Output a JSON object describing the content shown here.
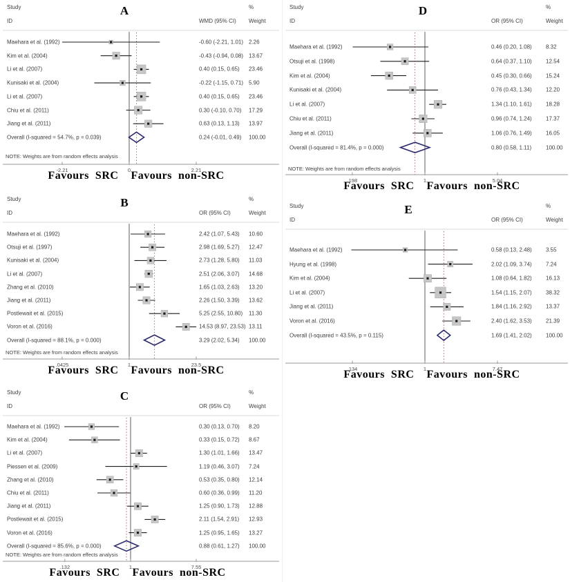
{
  "labels": {
    "study": "Study",
    "id": "ID",
    "percent": "%",
    "weight": "Weight",
    "favours": "Favours  SRC    Favours  non-SRC"
  },
  "colors": {
    "ci_line": "#1a1a1a",
    "marker": "#1a1a1a",
    "weight_box": "#c6c6c6",
    "weight_box_border": "#a8a8a8",
    "diamond": "#28286e",
    "null_line": "#6b6b6b",
    "overall_dashed_line": "#b06c6c",
    "axis_line": "#9a9a9a",
    "divider_line": "#d9d9d9"
  },
  "chart_data": [
    {
      "type": "forest",
      "panel": "A",
      "effect_header": "WMD (95% CI)",
      "scale": "linear",
      "axis_tick_labels": [
        "-2.21",
        "0",
        "2.21"
      ],
      "axis_tick_values": [
        -2.21,
        0,
        2.21
      ],
      "null_value": 0,
      "note": "NOTE: Weights are from random effects analysis",
      "favours": "Favours  SRC    Favours  non-SRC",
      "studies": [
        {
          "id": "Maehara et al. (1992)",
          "est": -0.6,
          "lo": -2.21,
          "hi": 1.01,
          "ci_text": "-0.60 (-2.21, 1.01)",
          "weight": "2.26"
        },
        {
          "id": "Kim et al. (2004)",
          "est": -0.43,
          "lo": -0.94,
          "hi": 0.08,
          "ci_text": "-0.43 (-0.94, 0.08)",
          "weight": "13.67"
        },
        {
          "id": "Li et al. (2007)",
          "est": 0.4,
          "lo": 0.15,
          "hi": 0.65,
          "ci_text": "0.40 (0.15, 0.65)",
          "weight": "23.46"
        },
        {
          "id": "Kunisaki et al. (2004)",
          "est": -0.22,
          "lo": -1.15,
          "hi": 0.71,
          "ci_text": "-0.22 (-1.15, 0.71)",
          "weight": "5.90"
        },
        {
          "id": "Li et al. (2007)",
          "est": 0.4,
          "lo": 0.15,
          "hi": 0.65,
          "ci_text": "0.40 (0.15, 0.65)",
          "weight": "23.46"
        },
        {
          "id": "Chiu et al. (2011)",
          "est": 0.3,
          "lo": -0.1,
          "hi": 0.7,
          "ci_text": "0.30 (-0.10, 0.70)",
          "weight": "17.29"
        },
        {
          "id": "Jiang et al. (2011)",
          "est": 0.63,
          "lo": 0.13,
          "hi": 1.13,
          "ci_text": "0.63 (0.13, 1.13)",
          "weight": "13.97"
        }
      ],
      "overall": {
        "id": "Overall  (I-squared = 54.7%, p = 0.039)",
        "est": 0.24,
        "lo": -0.01,
        "hi": 0.49,
        "ci_text": "0.24 (-0.01, 0.49)",
        "weight": "100.00"
      }
    },
    {
      "type": "forest",
      "panel": "B",
      "effect_header": "OR (95% CI)",
      "scale": "log",
      "axis_tick_labels": [
        ".0425",
        "1",
        "23.5"
      ],
      "axis_tick_values": [
        0.0425,
        1,
        23.5
      ],
      "null_value": 1,
      "note": "NOTE: Weights are from random effects analysis",
      "favours": "Favours  SRC    Favours  non-SRC",
      "studies": [
        {
          "id": "Maehara et al. (1992)",
          "est": 2.42,
          "lo": 1.07,
          "hi": 5.43,
          "ci_text": "2.42 (1.07, 5.43)",
          "weight": "10.60"
        },
        {
          "id": "Otsuji et al. (1997)",
          "est": 2.98,
          "lo": 1.69,
          "hi": 5.27,
          "ci_text": "2.98 (1.69, 5.27)",
          "weight": "12.47"
        },
        {
          "id": "Kunisaki et al. (2004)",
          "est": 2.73,
          "lo": 1.28,
          "hi": 5.8,
          "ci_text": "2.73 (1.28, 5.80)",
          "weight": "11.03"
        },
        {
          "id": "Li et al. (2007)",
          "est": 2.51,
          "lo": 2.06,
          "hi": 3.07,
          "ci_text": "2.51 (2.06, 3.07)",
          "weight": "14.68"
        },
        {
          "id": "Zhang et al. (2010)",
          "est": 1.65,
          "lo": 1.03,
          "hi": 2.63,
          "ci_text": "1.65 (1.03, 2.63)",
          "weight": "13.20"
        },
        {
          "id": "Jiang et al. (2011)",
          "est": 2.26,
          "lo": 1.5,
          "hi": 3.39,
          "ci_text": "2.26 (1.50, 3.39)",
          "weight": "13.62"
        },
        {
          "id": "Postlewait et al. (2015)",
          "est": 5.25,
          "lo": 2.55,
          "hi": 10.8,
          "ci_text": "5.25 (2.55, 10.80)",
          "weight": "11.30"
        },
        {
          "id": "Voron et al. (2016)",
          "est": 14.53,
          "lo": 8.97,
          "hi": 23.53,
          "ci_text": "14.53 (8.97, 23.53)",
          "weight": "13.11"
        }
      ],
      "overall": {
        "id": "Overall  (I-squared = 88.1%, p = 0.000)",
        "est": 3.29,
        "lo": 2.02,
        "hi": 5.34,
        "ci_text": "3.29 (2.02, 5.34)",
        "weight": "100.00"
      }
    },
    {
      "type": "forest",
      "panel": "C",
      "effect_header": "OR (95% CI)",
      "scale": "log",
      "axis_tick_labels": [
        ".132",
        "1",
        "7.55"
      ],
      "axis_tick_values": [
        0.132,
        1,
        7.55
      ],
      "null_value": 1,
      "note": "NOTE: Weights are from random effects analysis",
      "favours": "Favours  SRC    Favours  non-SRC",
      "studies": [
        {
          "id": "Maehara et al. (1992)",
          "est": 0.3,
          "lo": 0.13,
          "hi": 0.7,
          "ci_text": "0.30 (0.13, 0.70)",
          "weight": "8.20"
        },
        {
          "id": "Kim et al. (2004)",
          "est": 0.33,
          "lo": 0.15,
          "hi": 0.72,
          "ci_text": "0.33 (0.15, 0.72)",
          "weight": "8.67"
        },
        {
          "id": "Li et al. (2007)",
          "est": 1.3,
          "lo": 1.01,
          "hi": 1.66,
          "ci_text": "1.30 (1.01, 1.66)",
          "weight": "13.47"
        },
        {
          "id": "Piessen et al. (2009)",
          "est": 1.19,
          "lo": 0.46,
          "hi": 3.07,
          "ci_text": "1.19 (0.46, 3.07)",
          "weight": "7.24"
        },
        {
          "id": "Zhang et al. (2010)",
          "est": 0.53,
          "lo": 0.35,
          "hi": 0.8,
          "ci_text": "0.53 (0.35, 0.80)",
          "weight": "12.14"
        },
        {
          "id": "Chiu et al. (2011)",
          "est": 0.6,
          "lo": 0.36,
          "hi": 0.99,
          "ci_text": "0.60 (0.36, 0.99)",
          "weight": "11.20"
        },
        {
          "id": "Jiang et al. (2011)",
          "est": 1.25,
          "lo": 0.9,
          "hi": 1.73,
          "ci_text": "1.25 (0.90, 1.73)",
          "weight": "12.88"
        },
        {
          "id": "Postlewait et al. (2015)",
          "est": 2.11,
          "lo": 1.54,
          "hi": 2.91,
          "ci_text": "2.11 (1.54, 2.91)",
          "weight": "12.93"
        },
        {
          "id": "Voron et al. (2016)",
          "est": 1.25,
          "lo": 0.95,
          "hi": 1.65,
          "ci_text": "1.25 (0.95, 1.65)",
          "weight": "13.27"
        }
      ],
      "overall": {
        "id": "Overall  (I-squared = 85.6%, p = 0.000)",
        "est": 0.88,
        "lo": 0.61,
        "hi": 1.27,
        "ci_text": "0.88 (0.61, 1.27)",
        "weight": "100.00"
      }
    },
    {
      "type": "forest",
      "panel": "D",
      "effect_header": "OR (95% CI)",
      "scale": "log",
      "axis_tick_labels": [
        ".198",
        "1",
        "5.04"
      ],
      "axis_tick_values": [
        0.198,
        1,
        5.04
      ],
      "null_value": 1,
      "note": "NOTE: Weights are from random effects analysis",
      "favours": "Favours  SRC    Favours  non-SRC",
      "studies": [
        {
          "id": "Maehara et al. (1992)",
          "est": 0.46,
          "lo": 0.2,
          "hi": 1.08,
          "ci_text": "0.46 (0.20, 1.08)",
          "weight": "8.32"
        },
        {
          "id": "Otsuji et al. (1998)",
          "est": 0.64,
          "lo": 0.37,
          "hi": 1.1,
          "ci_text": "0.64 (0.37, 1.10)",
          "weight": "12.54"
        },
        {
          "id": "Kim et al. (2004)",
          "est": 0.45,
          "lo": 0.3,
          "hi": 0.66,
          "ci_text": "0.45 (0.30, 0.66)",
          "weight": "15.24"
        },
        {
          "id": "Kunisaki et al. (2004)",
          "est": 0.76,
          "lo": 0.43,
          "hi": 1.34,
          "ci_text": "0.76 (0.43, 1.34)",
          "weight": "12.20"
        },
        {
          "id": "Li et al. (2007)",
          "est": 1.34,
          "lo": 1.1,
          "hi": 1.61,
          "ci_text": "1.34 (1.10, 1.61)",
          "weight": "18.28"
        },
        {
          "id": "Chiu et al. (2011)",
          "est": 0.96,
          "lo": 0.74,
          "hi": 1.24,
          "ci_text": "0.96 (0.74, 1.24)",
          "weight": "17.37"
        },
        {
          "id": "Jiang et al. (2011)",
          "est": 1.06,
          "lo": 0.76,
          "hi": 1.49,
          "ci_text": "1.06 (0.76, 1.49)",
          "weight": "16.05"
        }
      ],
      "overall": {
        "id": "Overall  (I-squared = 81.4%, p = 0.000)",
        "est": 0.8,
        "lo": 0.58,
        "hi": 1.11,
        "ci_text": "0.80 (0.58, 1.11)",
        "weight": "100.00"
      }
    },
    {
      "type": "forest",
      "panel": "E",
      "effect_header": "OR (95% CI)",
      "scale": "log",
      "axis_tick_labels": [
        ".134",
        "1",
        "7.47"
      ],
      "axis_tick_values": [
        0.134,
        1,
        7.47
      ],
      "null_value": 1,
      "note": null,
      "favours": "Favours  SRC    Favours  non-SRC",
      "studies": [
        {
          "id": "Maehara et al. (1992)",
          "est": 0.58,
          "lo": 0.13,
          "hi": 2.48,
          "ci_text": "0.58 (0.13, 2.48)",
          "weight": "3.55"
        },
        {
          "id": "Hyung et al. (1998)",
          "est": 2.02,
          "lo": 1.09,
          "hi": 3.74,
          "ci_text": "2.02 (1.09, 3.74)",
          "weight": "7.24"
        },
        {
          "id": "Kim et al. (2004)",
          "est": 1.08,
          "lo": 0.64,
          "hi": 1.82,
          "ci_text": "1.08 (0.64, 1.82)",
          "weight": "16.13"
        },
        {
          "id": "Li et al. (2007)",
          "est": 1.54,
          "lo": 1.15,
          "hi": 2.07,
          "ci_text": "1.54 (1.15, 2.07)",
          "weight": "38.32"
        },
        {
          "id": "Jiang et al. (2011)",
          "est": 1.84,
          "lo": 1.16,
          "hi": 2.92,
          "ci_text": "1.84 (1.16, 2.92)",
          "weight": "13.37"
        },
        {
          "id": "Voron et al. (2016)",
          "est": 2.4,
          "lo": 1.62,
          "hi": 3.53,
          "ci_text": "2.40 (1.62, 3.53)",
          "weight": "21.39"
        }
      ],
      "overall": {
        "id": "Overall  (I-squared = 43.5%, p = 0.115)",
        "est": 1.69,
        "lo": 1.41,
        "hi": 2.02,
        "ci_text": "1.69 (1.41, 2.02)",
        "weight": "100.00"
      }
    }
  ]
}
